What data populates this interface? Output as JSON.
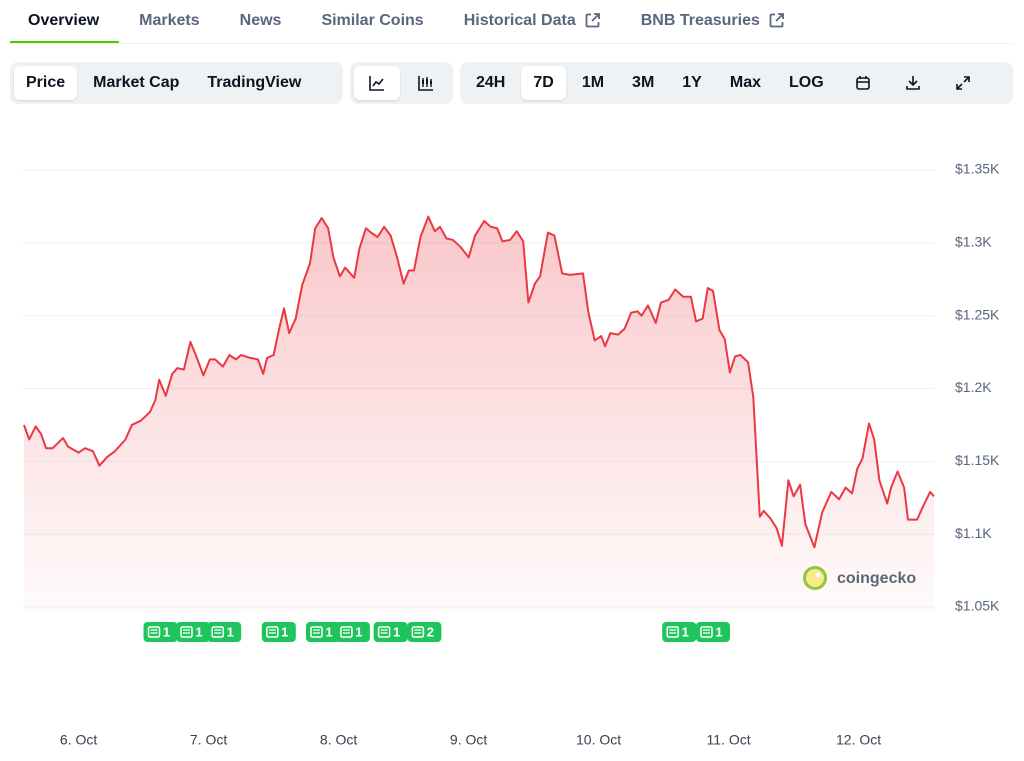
{
  "tabs": [
    {
      "label": "Overview"
    },
    {
      "label": "Markets"
    },
    {
      "label": "News"
    },
    {
      "label": "Similar Coins"
    },
    {
      "label": "Historical Data",
      "external": true
    },
    {
      "label": "BNB Treasuries",
      "external": true
    }
  ],
  "active_tab": 0,
  "chart_views": [
    "Price",
    "Market Cap",
    "TradingView"
  ],
  "active_view": 0,
  "ranges": [
    "24H",
    "7D",
    "1M",
    "3M",
    "1Y",
    "Max",
    "LOG"
  ],
  "active_range": 1,
  "chart_data": {
    "type": "area",
    "color": "#ea3943",
    "x": [
      -0.42,
      -0.38,
      -0.33,
      -0.29,
      -0.25,
      -0.2,
      -0.12,
      -0.08,
      0,
      0.05,
      0.11,
      0.16,
      0.22,
      0.28,
      0.36,
      0.41,
      0.48,
      0.55,
      0.59,
      0.62,
      0.67,
      0.72,
      0.76,
      0.81,
      0.86,
      0.91,
      0.96,
      1.01,
      1.05,
      1.11,
      1.16,
      1.21,
      1.25,
      1.32,
      1.38,
      1.42,
      1.45,
      1.5,
      1.54,
      1.58,
      1.62,
      1.67,
      1.72,
      1.78,
      1.82,
      1.87,
      1.92,
      1.96,
      2.01,
      2.05,
      2.12,
      2.16,
      2.21,
      2.25,
      2.3,
      2.35,
      2.4,
      2.45,
      2.5,
      2.54,
      2.58,
      2.63,
      2.69,
      2.74,
      2.78,
      2.83,
      2.88,
      2.94,
      3,
      3.05,
      3.12,
      3.17,
      3.22,
      3.26,
      3.32,
      3.37,
      3.42,
      3.46,
      3.51,
      3.55,
      3.61,
      3.66,
      3.72,
      3.78,
      3.88,
      3.92,
      3.97,
      4.02,
      4.05,
      4.09,
      4.15,
      4.2,
      4.25,
      4.3,
      4.33,
      4.38,
      4.44,
      4.48,
      4.54,
      4.59,
      4.65,
      4.71,
      4.75,
      4.8,
      4.84,
      4.88,
      4.93,
      4.97,
      5.01,
      5.05,
      5.09,
      5.15,
      5.19,
      5.24,
      5.27,
      5.32,
      5.37,
      5.41,
      5.46,
      5.5,
      5.55,
      5.59,
      5.66,
      5.72,
      5.79,
      5.85,
      5.9,
      5.95,
      5.99,
      6.03,
      6.08,
      6.12,
      6.16,
      6.22,
      6.25,
      6.3,
      6.35,
      6.38,
      6.45,
      6.49,
      6.55,
      6.58
    ],
    "values": [
      1175,
      1165,
      1174,
      1169,
      1159,
      1159,
      1166,
      1160,
      1156,
      1159,
      1157,
      1147,
      1153,
      1157,
      1165,
      1175,
      1178,
      1184,
      1192,
      1206,
      1195,
      1210,
      1214,
      1213,
      1232,
      1221,
      1209,
      1220,
      1220,
      1215,
      1223,
      1220,
      1223,
      1221,
      1220,
      1210,
      1221,
      1223,
      1240,
      1255,
      1238,
      1248,
      1271,
      1286,
      1310,
      1317,
      1310,
      1290,
      1277,
      1283,
      1276,
      1296,
      1310,
      1307,
      1304,
      1311,
      1305,
      1290,
      1272,
      1281,
      1281,
      1304,
      1318,
      1308,
      1311,
      1303,
      1302,
      1297,
      1290,
      1305,
      1315,
      1311,
      1310,
      1301,
      1302,
      1308,
      1301,
      1259,
      1272,
      1277,
      1307,
      1305,
      1279,
      1278,
      1279,
      1253,
      1233,
      1236,
      1229,
      1238,
      1237,
      1241,
      1252,
      1253,
      1250,
      1257,
      1245,
      1259,
      1261,
      1268,
      1263,
      1263,
      1246,
      1248,
      1269,
      1267,
      1240,
      1234,
      1211,
      1222,
      1223,
      1218,
      1194,
      1112,
      1116,
      1111,
      1104,
      1092,
      1137,
      1126,
      1134,
      1107,
      1091,
      1115,
      1129,
      1124,
      1132,
      1128,
      1145,
      1152,
      1176,
      1165,
      1137,
      1121,
      1132,
      1143,
      1132,
      1110,
      1110,
      1118,
      1129,
      1126
    ],
    "xlim": [
      -0.42,
      6.58
    ],
    "xticks": [
      {
        "value": 0,
        "label": "6. Oct"
      },
      {
        "value": 1,
        "label": "7. Oct"
      },
      {
        "value": 2,
        "label": "8. Oct"
      },
      {
        "value": 3,
        "label": "9. Oct"
      },
      {
        "value": 4,
        "label": "10. Oct"
      },
      {
        "value": 5,
        "label": "11. Oct"
      },
      {
        "value": 6,
        "label": "12. Oct"
      }
    ],
    "ylim": [
      1050,
      1350
    ],
    "yticks": [
      {
        "value": 1050,
        "label": "$1.05K"
      },
      {
        "value": 1100,
        "label": "$1.1K"
      },
      {
        "value": 1150,
        "label": "$1.15K"
      },
      {
        "value": 1200,
        "label": "$1.2K"
      },
      {
        "value": 1250,
        "label": "$1.25K"
      },
      {
        "value": 1300,
        "label": "$1.3K"
      },
      {
        "value": 1350,
        "label": "$1.35K"
      }
    ],
    "grid": true,
    "news": [
      {
        "x": 0.63,
        "count": 1
      },
      {
        "x": 0.88,
        "count": 1
      },
      {
        "x": 1.12,
        "count": 1
      },
      {
        "x": 1.54,
        "count": 1
      },
      {
        "x": 1.88,
        "count": 1
      },
      {
        "x": 2.11,
        "count": 1
      },
      {
        "x": 2.4,
        "count": 1
      },
      {
        "x": 2.66,
        "count": 2
      },
      {
        "x": 4.62,
        "count": 1
      },
      {
        "x": 4.88,
        "count": 1
      }
    ],
    "watermark": "coingecko"
  }
}
